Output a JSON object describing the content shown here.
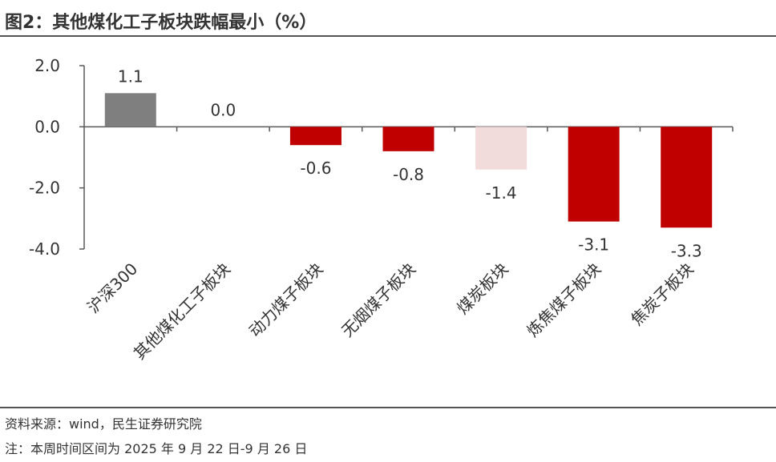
{
  "header": {
    "title": "图2：其他煤化工子板块跌幅最小（%）"
  },
  "footer": {
    "source": "资料来源：wind，民生证券研究院",
    "note": "注：本周时间区间为 2025 年 9 月 22 日-9 月 26 日"
  },
  "chart_data": {
    "type": "bar",
    "title": "其他煤化工子板块跌幅最小（%）",
    "xlabel": "",
    "ylabel": "",
    "ylim": [
      -4.0,
      2.0
    ],
    "yticks": [
      2.0,
      0.0,
      -2.0,
      -4.0
    ],
    "ytick_labels": [
      "2.0",
      "0.0",
      "-2.0",
      "-4.0"
    ],
    "grid": false,
    "legend": "none",
    "categories": [
      "沪深300",
      "其他煤化工子板块",
      "动力煤子板块",
      "无烟煤子板块",
      "煤炭板块",
      "炼焦煤子板块",
      "焦炭子板块"
    ],
    "values": [
      1.1,
      0.0,
      -0.6,
      -0.8,
      -1.4,
      -3.1,
      -3.3
    ],
    "value_labels": [
      "1.1",
      "0.0",
      "-0.6",
      "-0.8",
      "-1.4",
      "-3.1",
      "-3.3"
    ],
    "bar_colors": [
      "#7f7f7f",
      "#c00000",
      "#c00000",
      "#c00000",
      "#f2dcdb",
      "#c00000",
      "#c00000"
    ]
  }
}
